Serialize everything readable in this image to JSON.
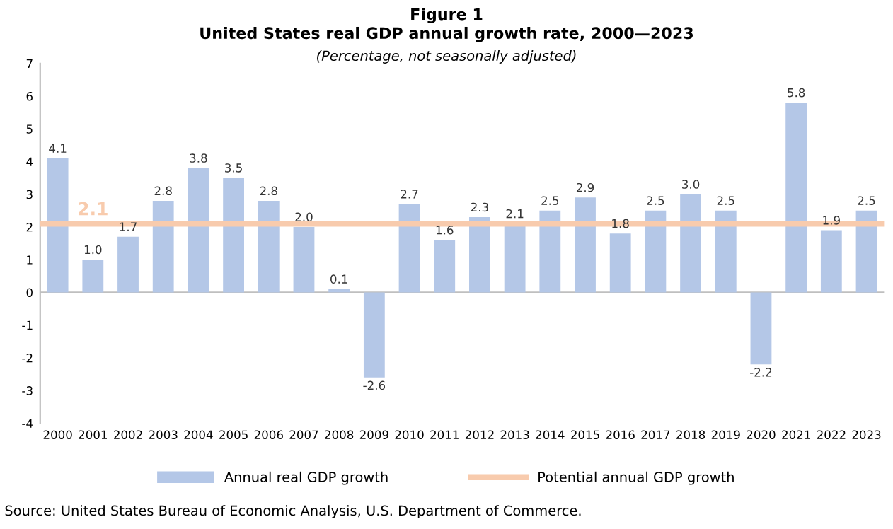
{
  "chart_data": {
    "type": "bar",
    "title": "Figure 1\nUnited States real GDP annual growth rate, 2000—2023",
    "subtitle": "(Percentage, not seasonally adjusted)",
    "categories": [
      "2000",
      "2001",
      "2002",
      "2003",
      "2004",
      "2005",
      "2006",
      "2007",
      "2008",
      "2009",
      "2010",
      "2011",
      "2012",
      "2013",
      "2014",
      "2015",
      "2016",
      "2017",
      "2018",
      "2019",
      "2020",
      "2021",
      "2022",
      "2023"
    ],
    "series": [
      {
        "name": "Annual real GDP growth",
        "color": "#b4c7e7",
        "values": [
          4.1,
          1.0,
          1.7,
          2.8,
          3.8,
          3.5,
          2.8,
          2.0,
          0.1,
          -2.6,
          2.7,
          1.6,
          2.3,
          2.1,
          2.5,
          2.9,
          1.8,
          2.5,
          3.0,
          2.5,
          -2.2,
          5.8,
          1.9,
          2.5
        ],
        "value_labels": [
          "4.1",
          "1.0",
          "1.7",
          "2.8",
          "3.8",
          "3.5",
          "2.8",
          "2.0",
          "0.1",
          "-2.6",
          "2.7",
          "1.6",
          "2.3",
          "2.1",
          "2.5",
          "2.9",
          "1.8",
          "2.5",
          "3.0",
          "2.5",
          "-2.2",
          "5.8",
          "1.9",
          "2.5"
        ]
      }
    ],
    "ref_lines": [
      {
        "axis": "y",
        "value": 2.1,
        "label": "Potential annual GDP growth",
        "color": "#f8cbad"
      }
    ],
    "annotations": [
      {
        "text": "2.1",
        "x": "2001",
        "y": 2.1
      },
      "Source: United States Bureau of Economic Analysis, U.S. Department of Commerce."
    ],
    "ylim": [
      -4,
      7
    ],
    "yticks": [
      -4,
      -3,
      -2,
      -1,
      0,
      1,
      2,
      3,
      4,
      5,
      6,
      7
    ],
    "legend": "bottom"
  }
}
